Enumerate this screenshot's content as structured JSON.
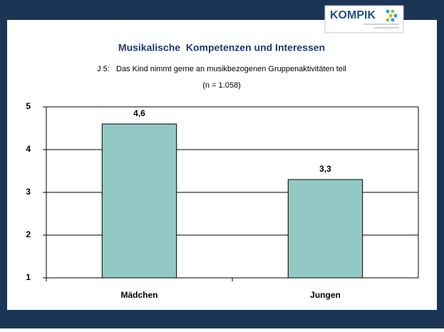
{
  "logo": "KOMPIK",
  "chart_data": {
    "type": "bar",
    "title": "Musikalische  Kompetenzen und Interessen",
    "subtitle": "J 5:   Das Kind nimmt gerne an musikbezogenen Gruppenaktivitäten teil",
    "note": "(n = 1.058)",
    "categories": [
      "Mädchen",
      "Jungen"
    ],
    "values": [
      4.6,
      3.3
    ],
    "value_labels": [
      "4,6",
      "3,3"
    ],
    "color": "#93c9c4",
    "ylim": [
      1,
      5
    ],
    "yticks": [
      1,
      2,
      3,
      4,
      5
    ],
    "grid": true
  }
}
